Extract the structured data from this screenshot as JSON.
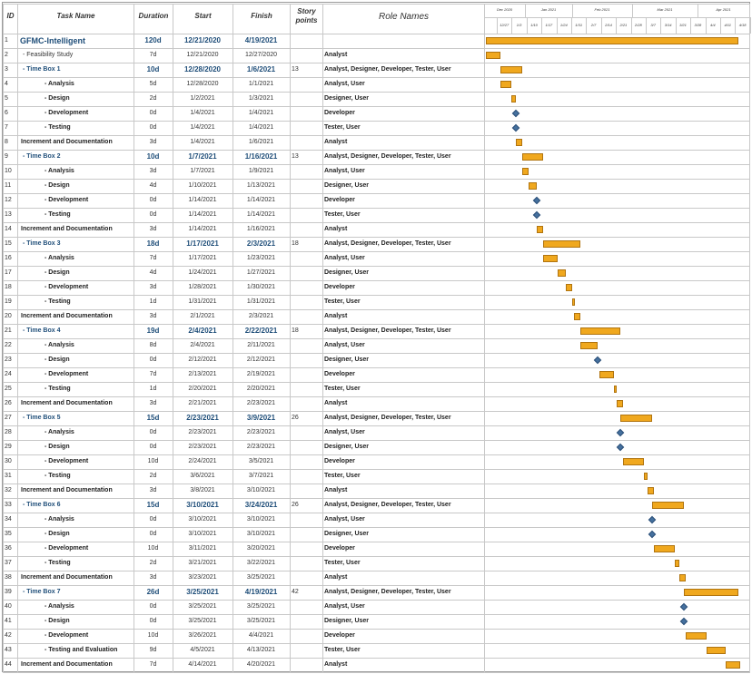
{
  "headers": {
    "id": "ID",
    "task": "Task Name",
    "duration": "Duration",
    "start": "Start",
    "finish": "Finish",
    "points": "Story points",
    "roles": "Role Names"
  },
  "timeline": {
    "months": [
      "Dec 2020",
      "Jan 2021",
      "Feb 2021",
      "Mar 2021",
      "Apr 2021"
    ],
    "weeks": [
      "12/27",
      "1/3",
      "1/10",
      "1/17",
      "1/24",
      "1/31",
      "2/7",
      "2/14",
      "2/21",
      "2/28",
      "3/7",
      "3/14",
      "3/21",
      "3/28",
      "4/4",
      "4/11",
      "4/18"
    ]
  },
  "colors": {
    "bar": "#f0a81e",
    "milestone": "#45709e",
    "heading": "#1f4e79"
  },
  "tasks": [
    {
      "id": "1",
      "name": "GFMC-Intelligent",
      "duration": "120d",
      "start": "12/21/2020",
      "finish": "4/19/2021",
      "points": "",
      "roles": "",
      "style": "top"
    },
    {
      "id": "2",
      "name": "- Feasibility Study",
      "duration": "7d",
      "start": "12/21/2020",
      "finish": "12/27/2020",
      "points": "",
      "roles": "Analyst",
      "style": "plain",
      "indent": 1
    },
    {
      "id": "3",
      "name": "- Time Box 1",
      "duration": "10d",
      "start": "12/28/2020",
      "finish": "1/6/2021",
      "points": "13",
      "roles": "Analyst, Designer, Developer, Tester, User",
      "style": "box",
      "indent": 1
    },
    {
      "id": "4",
      "name": "- Analysis",
      "duration": "5d",
      "start": "12/28/2020",
      "finish": "1/1/2021",
      "points": "",
      "roles": "Analyst, User",
      "style": "sub",
      "indent": 2
    },
    {
      "id": "5",
      "name": "- Design",
      "duration": "2d",
      "start": "1/2/2021",
      "finish": "1/3/2021",
      "points": "",
      "roles": "Designer, User",
      "style": "sub",
      "indent": 2
    },
    {
      "id": "6",
      "name": "- Development",
      "duration": "0d",
      "start": "1/4/2021",
      "finish": "1/4/2021",
      "points": "",
      "roles": "Developer",
      "style": "sub",
      "indent": 2
    },
    {
      "id": "7",
      "name": "- Testing",
      "duration": "0d",
      "start": "1/4/2021",
      "finish": "1/4/2021",
      "points": "",
      "roles": "Tester, User",
      "style": "sub",
      "indent": 2
    },
    {
      "id": "8",
      "name": "Increment and Documentation",
      "duration": "3d",
      "start": "1/4/2021",
      "finish": "1/6/2021",
      "points": "",
      "roles": "Analyst",
      "style": "inc",
      "indent": 0
    },
    {
      "id": "9",
      "name": "- Time Box 2",
      "duration": "10d",
      "start": "1/7/2021",
      "finish": "1/16/2021",
      "points": "13",
      "roles": "Analyst, Designer, Developer, Tester, User",
      "style": "box",
      "indent": 1
    },
    {
      "id": "10",
      "name": "- Analysis",
      "duration": "3d",
      "start": "1/7/2021",
      "finish": "1/9/2021",
      "points": "",
      "roles": "Analyst, User",
      "style": "sub",
      "indent": 2
    },
    {
      "id": "11",
      "name": "- Design",
      "duration": "4d",
      "start": "1/10/2021",
      "finish": "1/13/2021",
      "points": "",
      "roles": "Designer, User",
      "style": "sub",
      "indent": 2
    },
    {
      "id": "12",
      "name": "- Development",
      "duration": "0d",
      "start": "1/14/2021",
      "finish": "1/14/2021",
      "points": "",
      "roles": "Developer",
      "style": "sub",
      "indent": 2
    },
    {
      "id": "13",
      "name": "- Testing",
      "duration": "0d",
      "start": "1/14/2021",
      "finish": "1/14/2021",
      "points": "",
      "roles": "Tester, User",
      "style": "sub",
      "indent": 2
    },
    {
      "id": "14",
      "name": "Increment and Documentation",
      "duration": "3d",
      "start": "1/14/2021",
      "finish": "1/16/2021",
      "points": "",
      "roles": "Analyst",
      "style": "inc",
      "indent": 0
    },
    {
      "id": "15",
      "name": "- Time Box 3",
      "duration": "18d",
      "start": "1/17/2021",
      "finish": "2/3/2021",
      "points": "18",
      "roles": "Analyst, Designer, Developer, Tester, User",
      "style": "box",
      "indent": 1
    },
    {
      "id": "16",
      "name": "- Analysis",
      "duration": "7d",
      "start": "1/17/2021",
      "finish": "1/23/2021",
      "points": "",
      "roles": "Analyst, User",
      "style": "sub",
      "indent": 2
    },
    {
      "id": "17",
      "name": "- Design",
      "duration": "4d",
      "start": "1/24/2021",
      "finish": "1/27/2021",
      "points": "",
      "roles": "Designer, User",
      "style": "sub",
      "indent": 2
    },
    {
      "id": "18",
      "name": "- Development",
      "duration": "3d",
      "start": "1/28/2021",
      "finish": "1/30/2021",
      "points": "",
      "roles": "Developer",
      "style": "sub",
      "indent": 2
    },
    {
      "id": "19",
      "name": "- Testing",
      "duration": "1d",
      "start": "1/31/2021",
      "finish": "1/31/2021",
      "points": "",
      "roles": "Tester, User",
      "style": "sub",
      "indent": 2
    },
    {
      "id": "20",
      "name": "Increment and Documentation",
      "duration": "3d",
      "start": "2/1/2021",
      "finish": "2/3/2021",
      "points": "",
      "roles": "Analyst",
      "style": "inc",
      "indent": 0
    },
    {
      "id": "21",
      "name": "- Time Box 4",
      "duration": "19d",
      "start": "2/4/2021",
      "finish": "2/22/2021",
      "points": "18",
      "roles": "Analyst, Designer, Developer, Tester, User",
      "style": "box",
      "indent": 1
    },
    {
      "id": "22",
      "name": "- Analysis",
      "duration": "8d",
      "start": "2/4/2021",
      "finish": "2/11/2021",
      "points": "",
      "roles": "Analyst, User",
      "style": "sub",
      "indent": 2
    },
    {
      "id": "23",
      "name": "- Design",
      "duration": "0d",
      "start": "2/12/2021",
      "finish": "2/12/2021",
      "points": "",
      "roles": "Designer, User",
      "style": "sub",
      "indent": 2
    },
    {
      "id": "24",
      "name": "- Development",
      "duration": "7d",
      "start": "2/13/2021",
      "finish": "2/19/2021",
      "points": "",
      "roles": "Developer",
      "style": "sub",
      "indent": 2
    },
    {
      "id": "25",
      "name": "- Testing",
      "duration": "1d",
      "start": "2/20/2021",
      "finish": "2/20/2021",
      "points": "",
      "roles": "Tester, User",
      "style": "sub",
      "indent": 2
    },
    {
      "id": "26",
      "name": "Increment and Documentation",
      "duration": "3d",
      "start": "2/21/2021",
      "finish": "2/23/2021",
      "points": "",
      "roles": "Analyst",
      "style": "inc",
      "indent": 0
    },
    {
      "id": "27",
      "name": "- Time Box 5",
      "duration": "15d",
      "start": "2/23/2021",
      "finish": "3/9/2021",
      "points": "26",
      "roles": "Analyst, Designer, Developer, Tester, User",
      "style": "box",
      "indent": 1
    },
    {
      "id": "28",
      "name": "- Analysis",
      "duration": "0d",
      "start": "2/23/2021",
      "finish": "2/23/2021",
      "points": "",
      "roles": "Analyst, User",
      "style": "sub",
      "indent": 2
    },
    {
      "id": "29",
      "name": "- Design",
      "duration": "0d",
      "start": "2/23/2021",
      "finish": "2/23/2021",
      "points": "",
      "roles": "Designer, User",
      "style": "sub",
      "indent": 2
    },
    {
      "id": "30",
      "name": "- Development",
      "duration": "10d",
      "start": "2/24/2021",
      "finish": "3/5/2021",
      "points": "",
      "roles": "Developer",
      "style": "sub",
      "indent": 2
    },
    {
      "id": "31",
      "name": "- Testing",
      "duration": "2d",
      "start": "3/6/2021",
      "finish": "3/7/2021",
      "points": "",
      "roles": "Tester, User",
      "style": "sub",
      "indent": 2
    },
    {
      "id": "32",
      "name": "Increment and Documentation",
      "duration": "3d",
      "start": "3/8/2021",
      "finish": "3/10/2021",
      "points": "",
      "roles": "Analyst",
      "style": "inc",
      "indent": 0
    },
    {
      "id": "33",
      "name": "- Time Box 6",
      "duration": "15d",
      "start": "3/10/2021",
      "finish": "3/24/2021",
      "points": "26",
      "roles": "Analyst, Designer, Developer, Tester, User",
      "style": "box",
      "indent": 1
    },
    {
      "id": "34",
      "name": "- Analysis",
      "duration": "0d",
      "start": "3/10/2021",
      "finish": "3/10/2021",
      "points": "",
      "roles": "Analyst, User",
      "style": "sub",
      "indent": 2
    },
    {
      "id": "35",
      "name": "- Design",
      "duration": "0d",
      "start": "3/10/2021",
      "finish": "3/10/2021",
      "points": "",
      "roles": "Designer, User",
      "style": "sub",
      "indent": 2
    },
    {
      "id": "36",
      "name": "- Development",
      "duration": "10d",
      "start": "3/11/2021",
      "finish": "3/20/2021",
      "points": "",
      "roles": "Developer",
      "style": "sub",
      "indent": 2
    },
    {
      "id": "37",
      "name": "- Testing",
      "duration": "2d",
      "start": "3/21/2021",
      "finish": "3/22/2021",
      "points": "",
      "roles": "Tester, User",
      "style": "sub",
      "indent": 2
    },
    {
      "id": "38",
      "name": "Increment and Documentation",
      "duration": "3d",
      "start": "3/23/2021",
      "finish": "3/25/2021",
      "points": "",
      "roles": "Analyst",
      "style": "inc",
      "indent": 0
    },
    {
      "id": "39",
      "name": "- Time Box 7",
      "duration": "26d",
      "start": "3/25/2021",
      "finish": "4/19/2021",
      "points": "42",
      "roles": "Analyst, Designer, Developer, Tester, User",
      "style": "box",
      "indent": 1
    },
    {
      "id": "40",
      "name": "- Analysis",
      "duration": "0d",
      "start": "3/25/2021",
      "finish": "3/25/2021",
      "points": "",
      "roles": "Analyst, User",
      "style": "sub",
      "indent": 2
    },
    {
      "id": "41",
      "name": "- Design",
      "duration": "0d",
      "start": "3/25/2021",
      "finish": "3/25/2021",
      "points": "",
      "roles": "Designer, User",
      "style": "sub",
      "indent": 2
    },
    {
      "id": "42",
      "name": "- Development",
      "duration": "10d",
      "start": "3/26/2021",
      "finish": "4/4/2021",
      "points": "",
      "roles": "Developer",
      "style": "sub",
      "indent": 2
    },
    {
      "id": "43",
      "name": "- Testing and Evaluation",
      "duration": "9d",
      "start": "4/5/2021",
      "finish": "4/13/2021",
      "points": "",
      "roles": "Tester, User",
      "style": "sub",
      "indent": 2
    },
    {
      "id": "44",
      "name": "Increment and Documentation",
      "duration": "7d",
      "start": "4/14/2021",
      "finish": "4/20/2021",
      "points": "",
      "roles": "Analyst",
      "style": "inc",
      "indent": 0
    }
  ]
}
